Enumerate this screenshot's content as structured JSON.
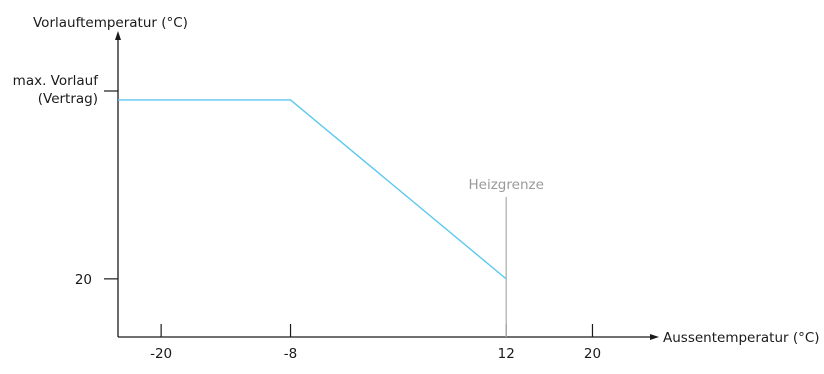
{
  "chart_data": {
    "type": "line",
    "title": "",
    "xlabel": "Aussentemperatur (°C)",
    "ylabel": "Vorlauftemperatur (°C)",
    "x_ticks": [
      -20,
      -8,
      12,
      20
    ],
    "y_ticks": [
      {
        "label": "20",
        "value": 20
      }
    ],
    "y_max_label_line1": "max. Vorlauf",
    "y_max_label_line2": "(Vertrag)",
    "xlim": [
      -24,
      24.5
    ],
    "ylim": [
      7,
      79
    ],
    "series": [
      {
        "color": "#5bc8f0",
        "points": [
          {
            "x": -24,
            "y": 60
          },
          {
            "x": -8,
            "y": 60
          },
          {
            "x": 12,
            "y": 20
          }
        ]
      }
    ],
    "annotations": [
      {
        "label": "Heizgrenze",
        "x": 12,
        "color": "#b0b0b0"
      }
    ],
    "y_max_value": 60
  }
}
